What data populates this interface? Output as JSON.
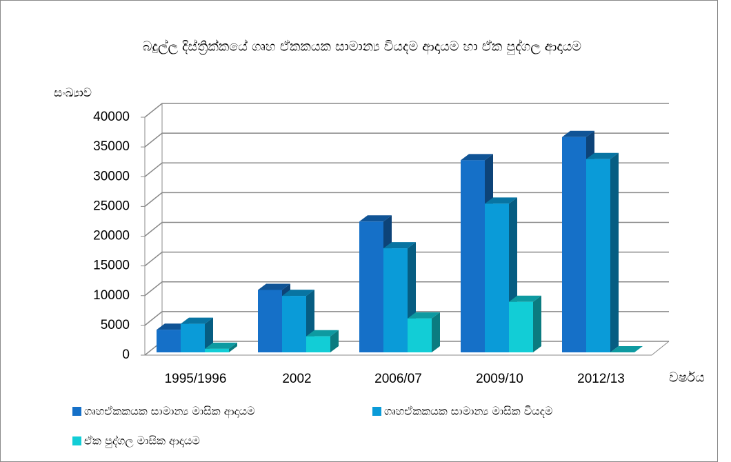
{
  "chart_data": {
    "type": "bar3d",
    "title": "බදුල්ල දිස්ත්‍රික්කයේ ගෘහ ඒකකයක සාමාන්‍ය වියදම  ආදායම හා ඒක පුද්ගල ආදායම",
    "y_label": "සංඛ්‍යාව",
    "x_label": "වර්ෂය",
    "categories": [
      "1995/1996",
      "2002",
      "2006/07",
      "2009/10",
      "2012/13"
    ],
    "series": [
      {
        "name": "ගෘහඒකකයක සාමාන්‍ය මාසික ආදායම",
        "color": "#1570c8",
        "values": [
          3800,
          10500,
          22000,
          32300,
          36200
        ]
      },
      {
        "name": "ගෘහඒකකයක සාමාන්‍ය මාසික වියදම",
        "color": "#0a9bd8",
        "values": [
          4800,
          9500,
          17500,
          25000,
          32500
        ]
      },
      {
        "name": "ඒක පුද්ගල මාසික ආදායම",
        "color": "#12cdd6",
        "values": [
          600,
          2700,
          5700,
          8500,
          0
        ]
      }
    ],
    "ylim": [
      0,
      40000
    ],
    "yticks": [
      0,
      5000,
      10000,
      15000,
      20000,
      25000,
      30000,
      35000,
      40000
    ],
    "grid": true,
    "legend": "bottom"
  }
}
